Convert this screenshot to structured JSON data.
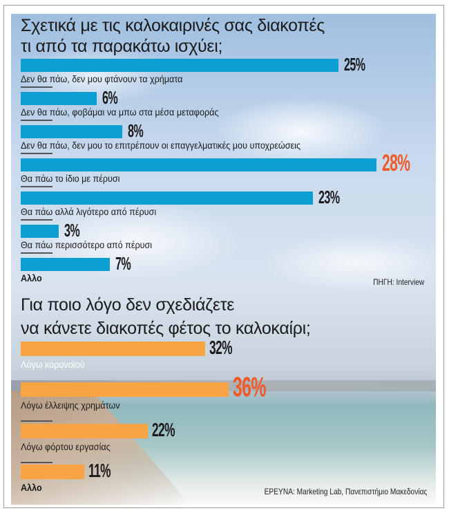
{
  "chart_data": [
    {
      "type": "bar",
      "orientation": "horizontal",
      "title": "Σχετικά με τις καλοκαιρινές σας διακοπές τι από τα παρακάτω ισχύει;",
      "title_lines": [
        "Σχετικά με τις καλοκαιρινές σας διακοπές",
        "τι από τα παρακάτω ισχύει;"
      ],
      "categories": [
        "Δεν θα πάω, δεν μου φτάνουν τα χρήματα",
        "Δεν θα πάω, φοβάμαι να μπω στα μέσα μεταφοράς",
        "Δεν θα πάω, δεν μου το επιτρέπουν οι επαγγελματικές μου υποχρεώσεις",
        "Θα πάω το ίδιο με πέρυσι",
        "Θα πάω αλλά λιγότερο από πέρυσι",
        "Θα πάω περισσότερο από πέρυσι",
        "Αλλο"
      ],
      "values": [
        25,
        6,
        8,
        28,
        23,
        3,
        7
      ],
      "data_labels": [
        "25%",
        "6%",
        "8%",
        "28%",
        "23%",
        "3%",
        "7%"
      ],
      "highlight_index": 3,
      "source": "ΠΗΓΗ: Interview",
      "bar_color": "#0a9ed3",
      "highlight_label_color": "#ef5a28",
      "grid": false
    },
    {
      "type": "bar",
      "orientation": "horizontal",
      "title": "Για ποιο λόγο δεν σχεδιάζετε να κάνετε διακοπές φέτος το καλοκαίρι;",
      "title_lines": [
        "Για ποιο λόγο δεν σχεδιάζετε",
        "να κάνετε διακοπές φέτος το καλοκαίρι;"
      ],
      "categories": [
        "Λόγω κορονοϊού",
        "Λόγω έλλειψης χρημάτων",
        "Λόγω φόρτου εργασίας",
        "Αλλο"
      ],
      "values": [
        32,
        36,
        22,
        11
      ],
      "data_labels": [
        "32%",
        "36%",
        "22%",
        "11%"
      ],
      "highlight_index": 1,
      "source": "ΕΡΕΥΝΑ: Marketing Lab, Πανεπιστήμιο Μακεδονίας",
      "bar_color": "#f8a444",
      "highlight_label_color": "#ef5a28",
      "grid": false
    }
  ]
}
